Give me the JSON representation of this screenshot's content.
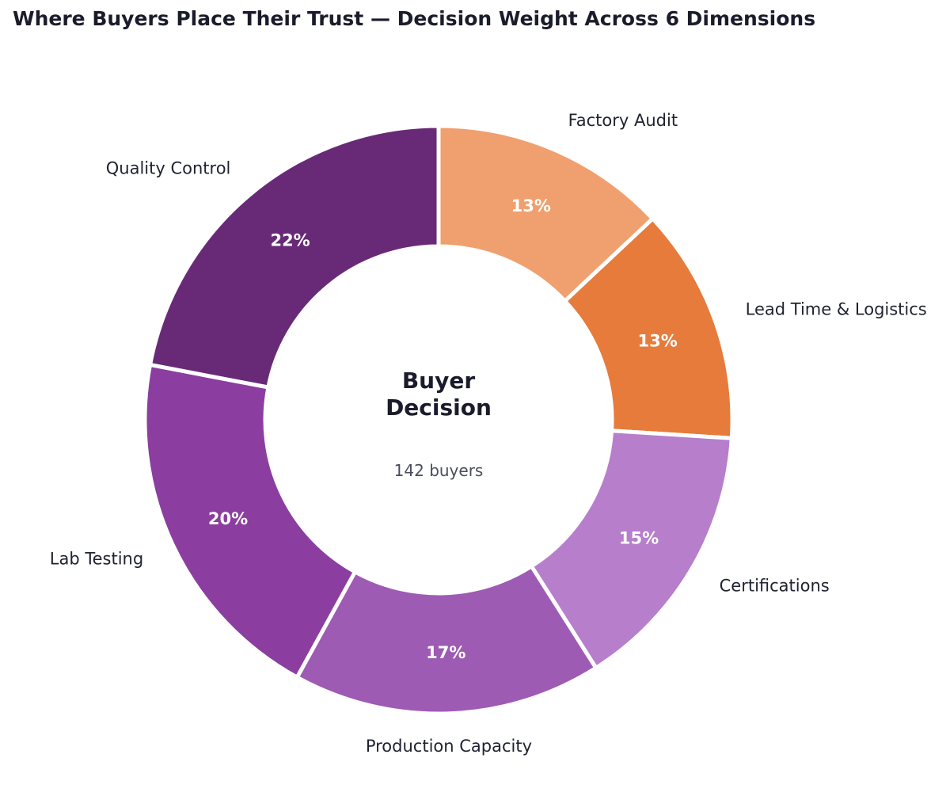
{
  "chart_data": {
    "type": "pie",
    "subtype": "donut",
    "title": "Where Buyers Place Their Trust — Decision Weight Across 6 Dimensions",
    "center": {
      "title_lines": [
        "Buyer",
        "Decision"
      ],
      "subtitle": "142 buyers"
    },
    "start_angle_deg": 90,
    "direction": "clockwise",
    "slices": [
      {
        "label": "Factory Audit",
        "value": 13,
        "pct_label": "13%",
        "color": "#f0a06e"
      },
      {
        "label": "Lead Time & Logistics",
        "value": 13,
        "pct_label": "13%",
        "color": "#e67b3c"
      },
      {
        "label": "Certifications",
        "value": 15,
        "pct_label": "15%",
        "color": "#b77ecc"
      },
      {
        "label": "Production Capacity",
        "value": 17,
        "pct_label": "17%",
        "color": "#9e5bb3"
      },
      {
        "label": "Lab Testing",
        "value": 20,
        "pct_label": "20%",
        "color": "#8b3ea0"
      },
      {
        "label": "Quality Control",
        "value": 22,
        "pct_label": "22%",
        "color": "#682a77"
      }
    ],
    "legend": "none"
  }
}
